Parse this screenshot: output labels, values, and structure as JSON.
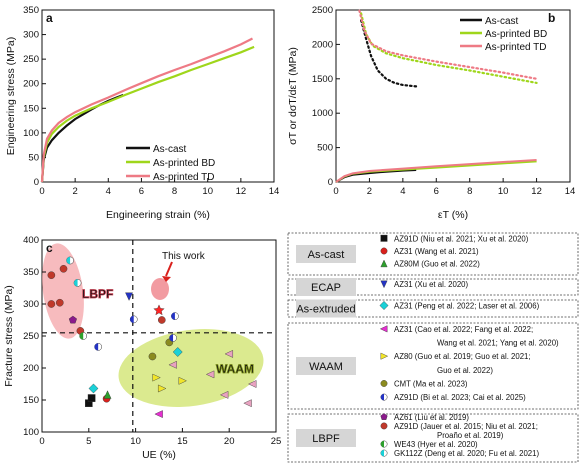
{
  "chart_data": [
    {
      "panel_label": "a",
      "type": "line",
      "xlabel": "Engineering strain (%)",
      "ylabel": "Engineering stress (MPa)",
      "xlim": [
        0,
        14
      ],
      "ylim": [
        0,
        350
      ],
      "xticks": [
        0,
        2,
        4,
        6,
        8,
        10,
        12,
        14
      ],
      "yticks": [
        0,
        50,
        100,
        150,
        200,
        250,
        300,
        350
      ],
      "legend_position": "center-right",
      "series": [
        {
          "name": "As-cast",
          "color": "#111111",
          "x": [
            0,
            0.1,
            0.3,
            0.6,
            1.0,
            1.5,
            2.0,
            2.5,
            3.0,
            3.5,
            4.0,
            4.5,
            4.9
          ],
          "y": [
            0,
            45,
            70,
            85,
            100,
            115,
            128,
            138,
            148,
            157,
            165,
            172,
            177
          ]
        },
        {
          "name": "As-printed BD",
          "color": "#9fd61b",
          "x": [
            0,
            0.1,
            0.3,
            0.6,
            1.0,
            1.5,
            2,
            3,
            4,
            5,
            6,
            7,
            8,
            9,
            10,
            11,
            12,
            12.8
          ],
          "y": [
            0,
            50,
            80,
            98,
            112,
            125,
            135,
            150,
            163,
            177,
            190,
            203,
            215,
            228,
            240,
            252,
            264,
            275
          ]
        },
        {
          "name": "As-printed TD",
          "color": "#ee7a85",
          "x": [
            0,
            0.1,
            0.3,
            0.6,
            1.0,
            1.5,
            2,
            3,
            4,
            5,
            6,
            7,
            8,
            9,
            10,
            11,
            12,
            12.7
          ],
          "y": [
            0,
            55,
            88,
            105,
            120,
            132,
            142,
            158,
            172,
            187,
            201,
            215,
            228,
            240,
            253,
            266,
            280,
            292
          ]
        }
      ]
    },
    {
      "panel_label": "b",
      "type": "line",
      "xlabel": "εT (%)",
      "ylabel": "σT or dσT/dεT (MPa)",
      "xlim": [
        0,
        14
      ],
      "ylim": [
        0,
        2500
      ],
      "xticks": [
        0,
        2,
        4,
        6,
        8,
        10,
        12,
        14
      ],
      "yticks": [
        0,
        500,
        1000,
        1500,
        2000,
        2500
      ],
      "legend_position": "top-right",
      "series": [
        {
          "name": "As-cast",
          "color": "#111111",
          "stress_x": [
            0,
            0.5,
            1,
            2,
            3,
            4,
            4.8
          ],
          "stress_y": [
            0,
            70,
            105,
            130,
            150,
            165,
            175
          ],
          "hardening_x": [
            1.5,
            1.8,
            2.1,
            2.5,
            3.0,
            3.5,
            4.0,
            4.8
          ],
          "hardening_y": [
            2350,
            2080,
            1830,
            1620,
            1500,
            1440,
            1410,
            1390
          ]
        },
        {
          "name": "As-printed BD",
          "color": "#9fd61b",
          "stress_x": [
            0,
            0.5,
            1,
            2,
            4,
            6,
            8,
            10,
            12
          ],
          "stress_y": [
            0,
            80,
            120,
            150,
            180,
            210,
            240,
            270,
            300
          ],
          "hardening_x": [
            1.5,
            1.8,
            2.2,
            3,
            4,
            6,
            8,
            10,
            12
          ],
          "hardening_y": [
            2450,
            2150,
            1980,
            1870,
            1800,
            1700,
            1620,
            1530,
            1440
          ]
        },
        {
          "name": "As-printed TD",
          "color": "#ee7a85",
          "stress_x": [
            0,
            0.5,
            1,
            2,
            4,
            6,
            8,
            10,
            12
          ],
          "stress_y": [
            0,
            85,
            125,
            160,
            195,
            230,
            260,
            290,
            320
          ],
          "hardening_x": [
            1.4,
            1.7,
            2.1,
            3,
            4,
            6,
            8,
            10,
            12
          ],
          "hardening_y": [
            2490,
            2200,
            2010,
            1900,
            1840,
            1750,
            1670,
            1590,
            1500
          ]
        }
      ]
    },
    {
      "panel_label": "c",
      "type": "scatter",
      "xlabel": "UE (%)",
      "ylabel": "Fracture stress (MPa)",
      "xlim": [
        0,
        25
      ],
      "ylim": [
        100,
        400
      ],
      "xticks": [
        0,
        5,
        10,
        15,
        20,
        25
      ],
      "yticks": [
        100,
        150,
        200,
        250,
        300,
        350,
        400
      ],
      "region_labels": [
        "LBPF",
        "WAAM"
      ],
      "this_work_label": "This work",
      "this_work_point": {
        "x": 12.5,
        "y": 290
      },
      "reference_lines": {
        "x": 9.7,
        "y": 255
      },
      "points": [
        {
          "group": "AZ91D cast",
          "marker": "square",
          "color": "#111111",
          "x": 5.0,
          "y": 145
        },
        {
          "group": "AZ91D cast",
          "marker": "square",
          "color": "#111111",
          "x": 5.3,
          "y": 153
        },
        {
          "group": "AZ31 cast",
          "marker": "circle",
          "color": "#d9201c",
          "x": 6.9,
          "y": 152
        },
        {
          "group": "AZ80M cast",
          "marker": "triangle-up",
          "color": "#2ca02c",
          "x": 7.0,
          "y": 158
        },
        {
          "group": "AZ31 ECAP",
          "marker": "triangle-down",
          "color": "#2433c4",
          "x": 9.3,
          "y": 312
        },
        {
          "group": "AZ31 extruded",
          "marker": "diamond",
          "color": "#1ad1d8",
          "x": 5.5,
          "y": 168
        },
        {
          "group": "AZ31 extruded",
          "marker": "diamond",
          "color": "#1ad1d8",
          "x": 14.5,
          "y": 225
        },
        {
          "group": "AZ31 WAAM",
          "marker": "triangle-left",
          "color": "#e62fd1",
          "x": 12.5,
          "y": 128
        },
        {
          "group": "AZ31 WAAM",
          "marker": "triangle-left",
          "color": "#e8a2c0",
          "x": 14.0,
          "y": 205
        },
        {
          "group": "AZ31 WAAM",
          "marker": "triangle-left",
          "color": "#e8a2c0",
          "x": 18.0,
          "y": 190
        },
        {
          "group": "AZ31 WAAM",
          "marker": "triangle-left",
          "color": "#e8a2c0",
          "x": 20.0,
          "y": 222
        },
        {
          "group": "AZ31 WAAM",
          "marker": "triangle-left",
          "color": "#e8a2c0",
          "x": 22.5,
          "y": 175
        },
        {
          "group": "AZ31 WAAM",
          "marker": "triangle-left",
          "color": "#e8a2c0",
          "x": 19.5,
          "y": 158
        },
        {
          "group": "AZ31 WAAM",
          "marker": "triangle-left",
          "color": "#e8a2c0",
          "x": 22.0,
          "y": 145
        },
        {
          "group": "AZ80 WAAM",
          "marker": "triangle-right",
          "color": "#f1e52a",
          "x": 12.2,
          "y": 185
        },
        {
          "group": "AZ80 WAAM",
          "marker": "triangle-right",
          "color": "#f1e52a",
          "x": 12.8,
          "y": 168
        },
        {
          "group": "AZ80 WAAM",
          "marker": "triangle-right",
          "color": "#f1e52a",
          "x": 15.0,
          "y": 180
        },
        {
          "group": "CMT WAAM",
          "marker": "circle",
          "color": "#8b8b1f",
          "x": 11.8,
          "y": 218
        },
        {
          "group": "CMT WAAM",
          "marker": "circle",
          "color": "#8b8b1f",
          "x": 13.6,
          "y": 240
        },
        {
          "group": "AZ91D WAAM",
          "marker": "half-circle",
          "color": "#2433c4",
          "x": 6.0,
          "y": 233
        },
        {
          "group": "AZ91D WAAM",
          "marker": "half-circle",
          "color": "#2433c4",
          "x": 9.8,
          "y": 276
        },
        {
          "group": "AZ91D WAAM",
          "marker": "half-circle",
          "color": "#2433c4",
          "x": 14.2,
          "y": 281
        },
        {
          "group": "AZ91D WAAM",
          "marker": "half-circle",
          "color": "#2433c4",
          "x": 14.0,
          "y": 247
        },
        {
          "group": "AZ61 LBPF",
          "marker": "pentagon",
          "color": "#8b1a8b",
          "x": 3.3,
          "y": 275
        },
        {
          "group": "AZ91D LBPF",
          "marker": "circle",
          "color": "#c0392b",
          "x": 1.0,
          "y": 345
        },
        {
          "group": "AZ91D LBPF",
          "marker": "circle",
          "color": "#c0392b",
          "x": 1.0,
          "y": 300
        },
        {
          "group": "AZ91D LBPF",
          "marker": "circle",
          "color": "#c0392b",
          "x": 1.9,
          "y": 302
        },
        {
          "group": "AZ91D LBPF",
          "marker": "circle",
          "color": "#c0392b",
          "x": 2.3,
          "y": 355
        },
        {
          "group": "AZ91D LBPF",
          "marker": "circle",
          "color": "#c0392b",
          "x": 4.1,
          "y": 258
        },
        {
          "group": "AZ91D LBPF",
          "marker": "circle",
          "color": "#c0392b",
          "x": 12.8,
          "y": 275
        },
        {
          "group": "WE43 LBPF",
          "marker": "half-circle",
          "color": "#2ca02c",
          "x": 4.4,
          "y": 250
        },
        {
          "group": "GK112Z LBPF",
          "marker": "half-circle",
          "color": "#1ad1d8",
          "x": 3.0,
          "y": 368
        },
        {
          "group": "GK112Z LBPF",
          "marker": "half-circle",
          "color": "#1ad1d8",
          "x": 3.8,
          "y": 333
        }
      ]
    }
  ],
  "legend_table": {
    "groups": [
      {
        "label": "As-cast",
        "entries": [
          {
            "marker": "square",
            "color": "#111111",
            "text": "AZ91D (Niu et al. 2021; Xu et al. 2020)"
          },
          {
            "marker": "circle",
            "color": "#d9201c",
            "text": "AZ31 (Wang  et al. 2021)"
          },
          {
            "marker": "triangle-up",
            "color": "#2ca02c",
            "text": "AZ80M (Guo et al. 2022)"
          }
        ]
      },
      {
        "label": "ECAP",
        "entries": [
          {
            "marker": "triangle-down",
            "color": "#2433c4",
            "text": "AZ31 (Xu et al. 2020)"
          }
        ]
      },
      {
        "label": "As-extruded",
        "entries": [
          {
            "marker": "diamond",
            "color": "#1ad1d8",
            "text": "AZ31 (Peng et al. 2022; Laser et al. 2006)"
          }
        ]
      },
      {
        "label": "WAAM",
        "entries": [
          {
            "marker": "triangle-left",
            "color": "#e62fd1",
            "text": "AZ31 (Cao et al. 2022; Fang et al. 2022;",
            "cont": "Wang  et al. 2021; Yang  et al. 2020)"
          },
          {
            "marker": "triangle-right",
            "color": "#f1e52a",
            "text": "AZ80 (Guo et al. 2019; Guo et al. 2021;",
            "cont": "Guo et al. 2022)"
          },
          {
            "marker": "circle",
            "color": "#8b8b1f",
            "text": "CMT (Ma et al. 2023)"
          },
          {
            "marker": "half-circle",
            "color": "#2433c4",
            "text": "AZ91D (Bi et al. 2023; Cai et al. 2025)"
          }
        ]
      },
      {
        "label": "LBPF",
        "entries": [
          {
            "marker": "pentagon",
            "color": "#8b1a8b",
            "text": "AZ61 (Liu et al. 2019)"
          },
          {
            "marker": "circle",
            "color": "#c0392b",
            "text": "AZ91D (Jauer et al. 2015; Niu et al. 2021;",
            "cont": "Proaño et al. 2019)"
          },
          {
            "marker": "half-circle",
            "color": "#2ca02c",
            "text": "WE43 (Hyer et al. 2020)"
          },
          {
            "marker": "half-circle",
            "color": "#1ad1d8",
            "text": "GK112Z (Deng et al. 2020; Fu et al. 2021)"
          }
        ]
      }
    ]
  }
}
